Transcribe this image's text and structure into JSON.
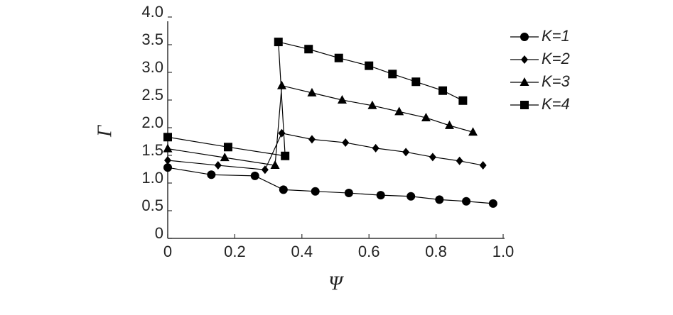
{
  "chart_data": {
    "type": "line",
    "xlabel": "Ψ",
    "ylabel": "Γ",
    "xlim": [
      0,
      1
    ],
    "ylim": [
      0,
      4
    ],
    "xticks": [
      0,
      0.2,
      0.4,
      0.6,
      0.8,
      {
        "value": 1,
        "label": "1.0"
      }
    ],
    "yticks": [
      0,
      0.5,
      {
        "value": 1,
        "label": "1.0"
      },
      1.5,
      {
        "value": 2,
        "label": "2.0"
      },
      2.5,
      {
        "value": 3,
        "label": "3.0"
      },
      3.5,
      {
        "value": 4,
        "label": "4.0"
      }
    ],
    "legend": "upper right",
    "series": [
      {
        "name": "K=1",
        "color": "#000000",
        "marker": "circle",
        "x": [
          0,
          0.13,
          0.26,
          0.345,
          0.44,
          0.54,
          0.635,
          0.725,
          0.81,
          0.89,
          0.97
        ],
        "values": [
          1.28,
          1.15,
          1.13,
          0.88,
          0.85,
          0.82,
          0.78,
          0.76,
          0.7,
          0.67,
          0.63
        ]
      },
      {
        "name": "K=2",
        "color": "#000000",
        "marker": "diamond",
        "x": [
          0,
          0.15,
          0.29,
          0.34,
          0.43,
          0.53,
          0.62,
          0.71,
          0.79,
          0.87,
          0.94
        ],
        "values": [
          1.41,
          1.32,
          1.24,
          1.9,
          1.79,
          1.73,
          1.63,
          1.56,
          1.47,
          1.4,
          1.32
        ]
      },
      {
        "name": "K=3",
        "color": "#000000",
        "marker": "triangle",
        "x": [
          0,
          0.17,
          0.32,
          0.34,
          0.43,
          0.52,
          0.61,
          0.69,
          0.77,
          0.84,
          0.91
        ],
        "values": [
          1.62,
          1.46,
          1.32,
          2.76,
          2.63,
          2.5,
          2.4,
          2.29,
          2.18,
          2.04,
          1.92
        ]
      },
      {
        "name": "K=4",
        "color": "#000000",
        "marker": "square",
        "x": [
          0,
          0.18,
          0.35,
          0.33,
          0.42,
          0.51,
          0.6,
          0.67,
          0.74,
          0.82,
          0.88
        ],
        "values": [
          1.83,
          1.65,
          1.49,
          3.55,
          3.42,
          3.26,
          3.12,
          2.97,
          2.83,
          2.67,
          2.49
        ]
      }
    ]
  }
}
